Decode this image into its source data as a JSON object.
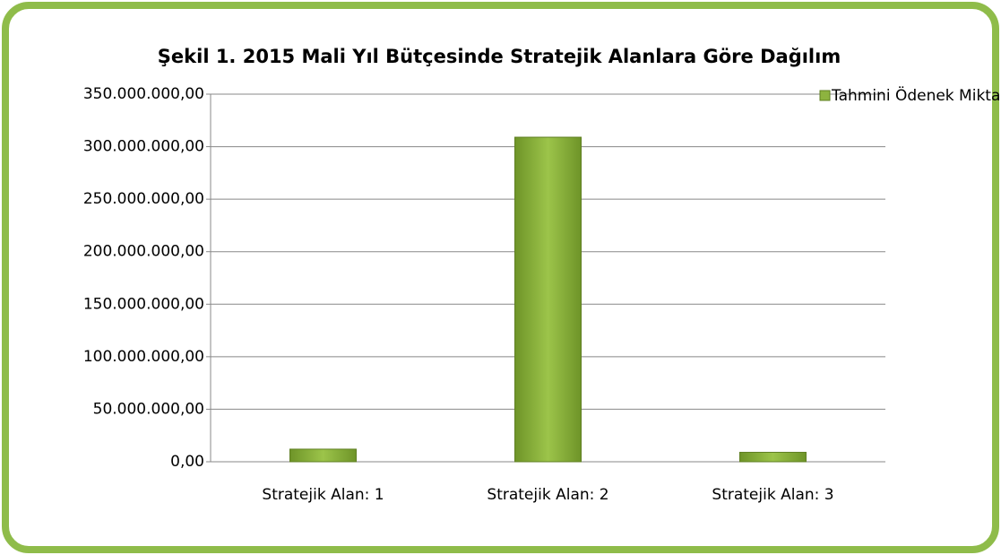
{
  "chart_data": {
    "type": "bar",
    "title": "Şekil 1. 2015 Mali  Yıl Bütçesinde Stratejik Alanlara Göre Dağılım",
    "categories": [
      "Stratejik Alan: 1",
      "Stratejik Alan: 2",
      "Stratejik Alan: 3"
    ],
    "series": [
      {
        "name": "Tahmini Ödenek Miktarı",
        "color": "#8db33f",
        "values": [
          12000000,
          309000000,
          9000000
        ]
      }
    ],
    "ylim": [
      0,
      350000000
    ],
    "yticks": [
      {
        "value": 0,
        "label": "0,00"
      },
      {
        "value": 50000000,
        "label": "50.000.000,00"
      },
      {
        "value": 100000000,
        "label": "100.000.000,00"
      },
      {
        "value": 150000000,
        "label": "150.000.000,00"
      },
      {
        "value": 200000000,
        "label": "200.000.000,00"
      },
      {
        "value": 250000000,
        "label": "250.000.000,00"
      },
      {
        "value": 300000000,
        "label": "300.000.000,00"
      },
      {
        "value": 350000000,
        "label": "350.000.000,00"
      }
    ],
    "grid": true,
    "legend": "top-right"
  }
}
